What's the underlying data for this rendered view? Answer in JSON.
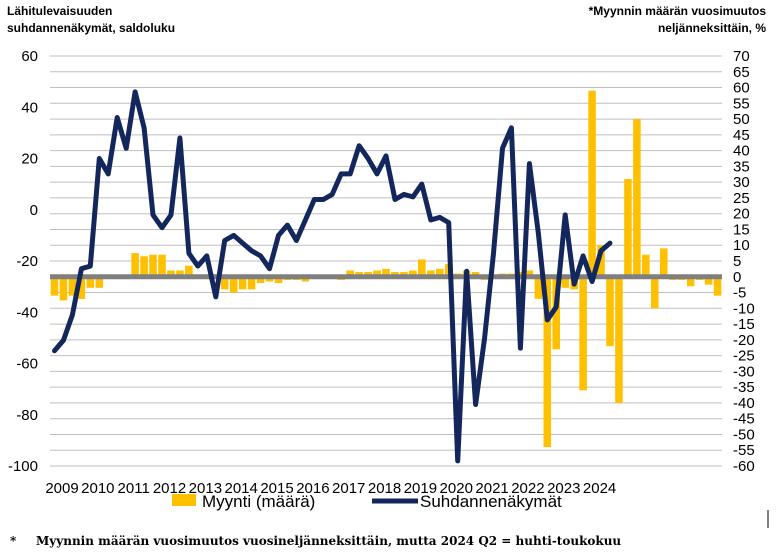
{
  "left_axis_title": [
    "Lähitulevaisuuden",
    "suhdannenäkymät, saldoluku"
  ],
  "right_axis_title": [
    "*Myynnin määrän vuosimuutos",
    "neljänneksittäin, %"
  ],
  "footnote_star": "*",
  "footnote": "Myynnin määrän vuosimuutos vuosineljänneksittäin, mutta 2024 Q2 = huhti-toukokuu",
  "colors": {
    "bars": "#FFC000",
    "line": "#14275C",
    "zero_line": "#7F7F7F",
    "grid": "#BFBFBF"
  },
  "chart_data": {
    "type": "bar+line",
    "x_start_year": 2009,
    "periods_per_year": 4,
    "years": [
      "2009",
      "2010",
      "2011",
      "2012",
      "2013",
      "2014",
      "2015",
      "2016",
      "2017",
      "2018",
      "2019",
      "2020",
      "2021",
      "2022",
      "2023",
      "2024"
    ],
    "left_axis": {
      "min": -100,
      "max": 60,
      "ticks": [
        60,
        40,
        20,
        0,
        -20,
        -40,
        -60,
        -80,
        -100
      ]
    },
    "right_axis": {
      "min": -60,
      "max": 70,
      "ticks": [
        70,
        65,
        60,
        55,
        50,
        45,
        40,
        35,
        30,
        25,
        20,
        15,
        10,
        5,
        0,
        -5,
        -10,
        -15,
        -20,
        -25,
        -30,
        -35,
        -40,
        -45,
        -50,
        -55,
        -60
      ]
    },
    "legend": [
      "Myynti (määrä)",
      "Suhdannenäkymät"
    ],
    "series": [
      {
        "name": "Myynti (määrä)",
        "type": "bar",
        "axis": "right",
        "values": [
          -6,
          -7.5,
          -6,
          -7,
          -3.5,
          -3.5,
          null,
          null,
          null,
          7.5,
          6.5,
          7,
          7,
          2,
          2,
          3.5,
          -0.5,
          null,
          null,
          -4,
          -5,
          -4,
          -4,
          -2,
          -1.5,
          -2,
          -1,
          -1,
          -1.5,
          -0.5,
          null,
          null,
          -1,
          2,
          1.5,
          1.5,
          2,
          2.5,
          1.5,
          1.5,
          2,
          5.5,
          2,
          2.5,
          4,
          1,
          2,
          1.5,
          -1,
          -0.5,
          1,
          1,
          1.5,
          2,
          -7,
          -54,
          -23,
          -3.5,
          -4,
          -36,
          59,
          10,
          -22,
          -40,
          31,
          50,
          7,
          -10,
          9,
          -1,
          -1,
          -3,
          -1,
          -2.5,
          -6
        ]
      },
      {
        "name": "Suhdannenäkymät",
        "type": "line",
        "axis": "left",
        "values": [
          -55,
          -51,
          -41,
          -23,
          -22,
          20,
          14,
          36,
          24,
          46,
          32,
          -2,
          -7,
          -2,
          28,
          -17,
          -22,
          -18,
          -34,
          -12,
          -10,
          -13,
          -16,
          -18,
          -23,
          -10,
          -6,
          -12,
          -4,
          4,
          4,
          6,
          14,
          14,
          25,
          20,
          14,
          21,
          4,
          6,
          5,
          10,
          -4,
          -3,
          -5,
          -98,
          -24,
          -76,
          -50,
          -17,
          24,
          32,
          -54,
          18,
          -9,
          -43,
          -38,
          -2,
          -29,
          -18,
          -28,
          -16,
          -13
        ]
      }
    ]
  }
}
